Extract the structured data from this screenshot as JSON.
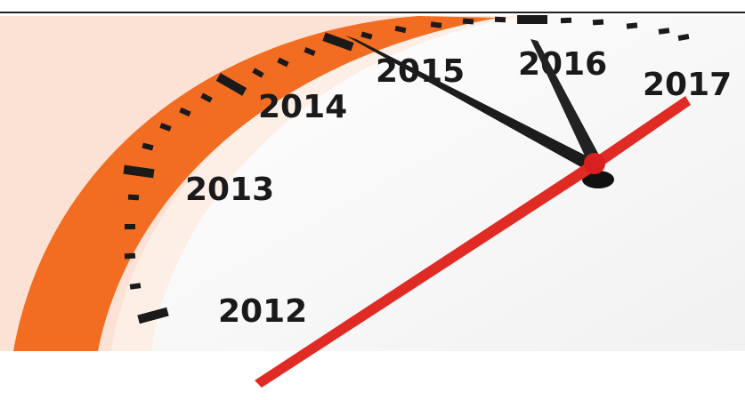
{
  "labels": [
    "2012",
    "2013",
    "2014",
    "2015",
    "2016",
    "2017"
  ]
}
